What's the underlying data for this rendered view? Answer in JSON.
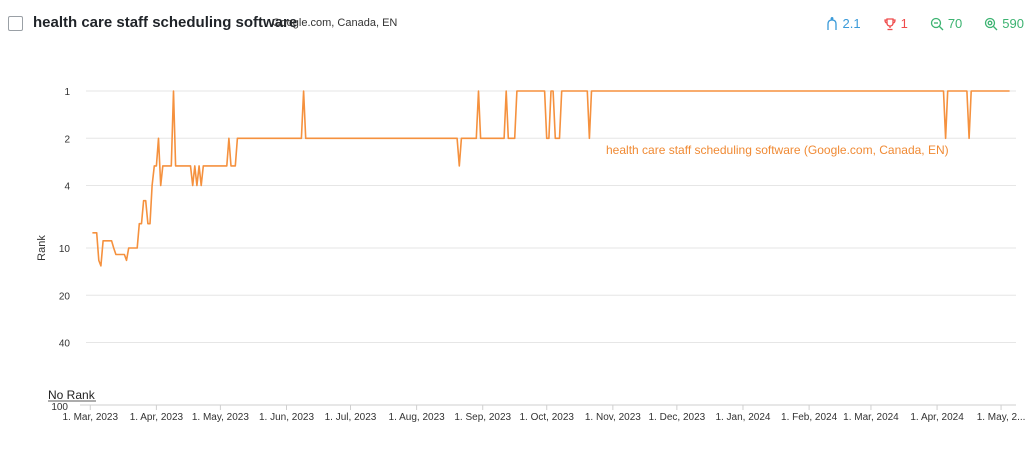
{
  "header": {
    "keyword": "health care staff scheduling software",
    "engine": "Google.com, Canada, EN"
  },
  "metrics": [
    {
      "name": "visibility",
      "icon": "fork-icon",
      "value": "2.1",
      "color": "#3a9ad9"
    },
    {
      "name": "best-rank",
      "icon": "trophy-icon",
      "value": "1",
      "color": "#ef4b4b"
    },
    {
      "name": "search-volume",
      "icon": "search-icon",
      "value": "70",
      "color": "#3cb371"
    },
    {
      "name": "results",
      "icon": "target-search-icon",
      "value": "590",
      "color": "#3cb371"
    }
  ],
  "chart_data": {
    "type": "line",
    "ylabel": "Rank",
    "y_axis": "log-inverted",
    "yticks": [
      "1",
      "2",
      "4",
      "10",
      "20",
      "40",
      "100"
    ],
    "no_rank_label": "No Rank",
    "xticks": [
      "1. Mar, 2023",
      "1. Apr, 2023",
      "1. May, 2023",
      "1. Jun, 2023",
      "1. Jul, 2023",
      "1. Aug, 2023",
      "1. Sep, 2023",
      "1. Oct, 2023",
      "1. Nov, 2023",
      "1. Dec, 2023",
      "1. Jan, 2024",
      "1. Feb, 2024",
      "1. Mar, 2024",
      "1. Apr, 2024",
      "1. May, 2..."
    ],
    "xtick_dates": [
      "2023-03-01",
      "2023-04-01",
      "2023-05-01",
      "2023-06-01",
      "2023-07-01",
      "2023-08-01",
      "2023-09-01",
      "2023-10-01",
      "2023-11-01",
      "2023-12-01",
      "2024-01-01",
      "2024-02-01",
      "2024-03-01",
      "2024-04-01",
      "2024-05-01"
    ],
    "grid": true,
    "series": [
      {
        "name": "health care staff scheduling software (Google.com, Canada, EN)",
        "color": "#f5913e",
        "points": [
          [
            "2023-03-02",
            8
          ],
          [
            "2023-03-04",
            8
          ],
          [
            "2023-03-05",
            12
          ],
          [
            "2023-03-06",
            13
          ],
          [
            "2023-03-07",
            9
          ],
          [
            "2023-03-11",
            9
          ],
          [
            "2023-03-12",
            10
          ],
          [
            "2023-03-13",
            11
          ],
          [
            "2023-03-17",
            11
          ],
          [
            "2023-03-18",
            12
          ],
          [
            "2023-03-19",
            10
          ],
          [
            "2023-03-23",
            10
          ],
          [
            "2023-03-24",
            7
          ],
          [
            "2023-03-25",
            7
          ],
          [
            "2023-03-26",
            5
          ],
          [
            "2023-03-27",
            5
          ],
          [
            "2023-03-28",
            7
          ],
          [
            "2023-03-29",
            7
          ],
          [
            "2023-03-30",
            4
          ],
          [
            "2023-03-31",
            3
          ],
          [
            "2023-04-01",
            3
          ],
          [
            "2023-04-02",
            2
          ],
          [
            "2023-04-03",
            4
          ],
          [
            "2023-04-04",
            3
          ],
          [
            "2023-04-08",
            3
          ],
          [
            "2023-04-09",
            1
          ],
          [
            "2023-04-10",
            3
          ],
          [
            "2023-04-17",
            3
          ],
          [
            "2023-04-18",
            4
          ],
          [
            "2023-04-19",
            3
          ],
          [
            "2023-04-20",
            4
          ],
          [
            "2023-04-21",
            3
          ],
          [
            "2023-04-22",
            4
          ],
          [
            "2023-04-23",
            3
          ],
          [
            "2023-04-25",
            3
          ],
          [
            "2023-05-01",
            3
          ],
          [
            "2023-05-04",
            3
          ],
          [
            "2023-05-05",
            2
          ],
          [
            "2023-05-06",
            3
          ],
          [
            "2023-05-08",
            3
          ],
          [
            "2023-05-09",
            2
          ],
          [
            "2023-06-08",
            2
          ],
          [
            "2023-06-09",
            1
          ],
          [
            "2023-06-10",
            2
          ],
          [
            "2023-08-20",
            2
          ],
          [
            "2023-08-21",
            3
          ],
          [
            "2023-08-22",
            2
          ],
          [
            "2023-08-29",
            2
          ],
          [
            "2023-08-30",
            1
          ],
          [
            "2023-08-31",
            2
          ],
          [
            "2023-09-11",
            2
          ],
          [
            "2023-09-12",
            1
          ],
          [
            "2023-09-13",
            2
          ],
          [
            "2023-09-16",
            2
          ],
          [
            "2023-09-17",
            1
          ],
          [
            "2023-09-30",
            1
          ],
          [
            "2023-10-01",
            2
          ],
          [
            "2023-10-02",
            2
          ],
          [
            "2023-10-03",
            1
          ],
          [
            "2023-10-04",
            1
          ],
          [
            "2023-10-05",
            2
          ],
          [
            "2023-10-07",
            2
          ],
          [
            "2023-10-08",
            1
          ],
          [
            "2023-10-20",
            1
          ],
          [
            "2023-10-21",
            2
          ],
          [
            "2023-10-22",
            1
          ],
          [
            "2024-04-04",
            1
          ],
          [
            "2024-04-05",
            2
          ],
          [
            "2024-04-06",
            1
          ],
          [
            "2024-04-15",
            1
          ],
          [
            "2024-04-16",
            2
          ],
          [
            "2024-04-17",
            1
          ],
          [
            "2024-05-05",
            1
          ]
        ]
      }
    ]
  }
}
